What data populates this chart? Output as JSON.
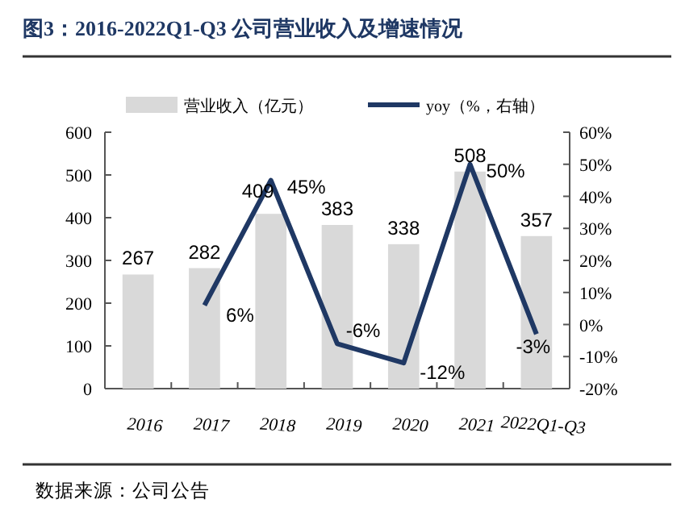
{
  "chart_data": {
    "type": "bar",
    "title": "图3：2016-2022Q1-Q3 公司营业收入及增速情况",
    "categories": [
      "2016",
      "2017",
      "2018",
      "2019",
      "2020",
      "2021",
      "2022Q1-Q3"
    ],
    "series": [
      {
        "name": "营业收入（亿元）",
        "color": "#d9d9d9",
        "values": [
          267,
          282,
          409,
          383,
          338,
          508,
          357
        ],
        "data_labels": true
      },
      {
        "name": "yoy（%，右轴）",
        "type": "line",
        "axis": "y2",
        "color": "#1f3864",
        "values": [
          null,
          6,
          45,
          -6,
          -12,
          50,
          -3
        ],
        "value_labels": [
          null,
          "6%",
          "45%",
          "-6%",
          "-12%",
          "50%",
          "-3%"
        ]
      }
    ],
    "ylim": [
      0,
      600
    ],
    "yticks": [
      0,
      100,
      200,
      300,
      400,
      500,
      600
    ],
    "y2lim": [
      -20,
      60
    ],
    "y2ticks": [
      {
        "value": -20,
        "label": "-20%"
      },
      {
        "value": -10,
        "label": "-10%"
      },
      {
        "value": 0,
        "label": "0%"
      },
      {
        "value": 10,
        "label": "10%"
      },
      {
        "value": 20,
        "label": "20%"
      },
      {
        "value": 30,
        "label": "30%"
      },
      {
        "value": 40,
        "label": "40%"
      },
      {
        "value": 50,
        "label": "50%"
      },
      {
        "value": 60,
        "label": "60%"
      }
    ],
    "legend": "top",
    "marker": "none",
    "line_style": "solid",
    "grid": false,
    "annotations": [
      "数据来源：公司公告"
    ]
  }
}
